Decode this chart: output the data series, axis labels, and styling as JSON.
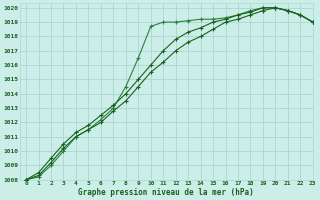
{
  "title": "Graphe pression niveau de la mer (hPa)",
  "background_color": "#cceee8",
  "grid_color": "#aad6ce",
  "line_color_dark": "#1a6020",
  "line_color_light": "#2d8040",
  "xlim": [
    -0.5,
    23
  ],
  "ylim": [
    1008,
    1020.3
  ],
  "xticks": [
    0,
    1,
    2,
    3,
    4,
    5,
    6,
    7,
    8,
    9,
    10,
    11,
    12,
    13,
    14,
    15,
    16,
    17,
    18,
    19,
    20,
    21,
    22,
    23
  ],
  "yticks": [
    1008,
    1009,
    1010,
    1011,
    1012,
    1013,
    1014,
    1015,
    1016,
    1017,
    1018,
    1019,
    1020
  ],
  "series1_x": [
    0,
    1,
    2,
    3,
    4,
    5,
    6,
    7,
    8,
    9,
    10,
    11,
    12,
    13,
    14,
    15,
    16,
    17,
    18,
    19,
    20,
    21,
    22,
    23
  ],
  "series1_y": [
    1008.0,
    1008.2,
    1009.0,
    1010.0,
    1011.0,
    1011.5,
    1012.2,
    1013.0,
    1014.5,
    1016.5,
    1018.7,
    1019.0,
    1019.0,
    1019.1,
    1019.2,
    1019.2,
    1019.3,
    1019.5,
    1019.8,
    1020.0,
    1020.0,
    1019.8,
    1019.5,
    1019.0
  ],
  "series2_x": [
    0,
    1,
    2,
    3,
    4,
    5,
    6,
    7,
    8,
    9,
    10,
    11,
    12,
    13,
    14,
    15,
    16,
    17,
    18,
    19,
    20,
    21,
    22,
    23
  ],
  "series2_y": [
    1008.0,
    1008.5,
    1009.5,
    1010.5,
    1011.3,
    1011.8,
    1012.5,
    1013.2,
    1014.0,
    1015.0,
    1016.0,
    1017.0,
    1017.8,
    1018.3,
    1018.6,
    1019.0,
    1019.2,
    1019.5,
    1019.7,
    1020.0,
    1020.0,
    1019.8,
    1019.5,
    1019.0
  ],
  "series3_x": [
    0,
    1,
    2,
    3,
    4,
    5,
    6,
    7,
    8,
    9,
    10,
    11,
    12,
    13,
    14,
    15,
    16,
    17,
    18,
    19,
    20,
    21,
    22,
    23
  ],
  "series3_y": [
    1008.0,
    1008.3,
    1009.2,
    1010.2,
    1011.0,
    1011.5,
    1012.0,
    1012.8,
    1013.5,
    1014.5,
    1015.5,
    1016.2,
    1017.0,
    1017.6,
    1018.0,
    1018.5,
    1019.0,
    1019.2,
    1019.5,
    1019.8,
    1020.0,
    1019.8,
    1019.5,
    1019.0
  ]
}
